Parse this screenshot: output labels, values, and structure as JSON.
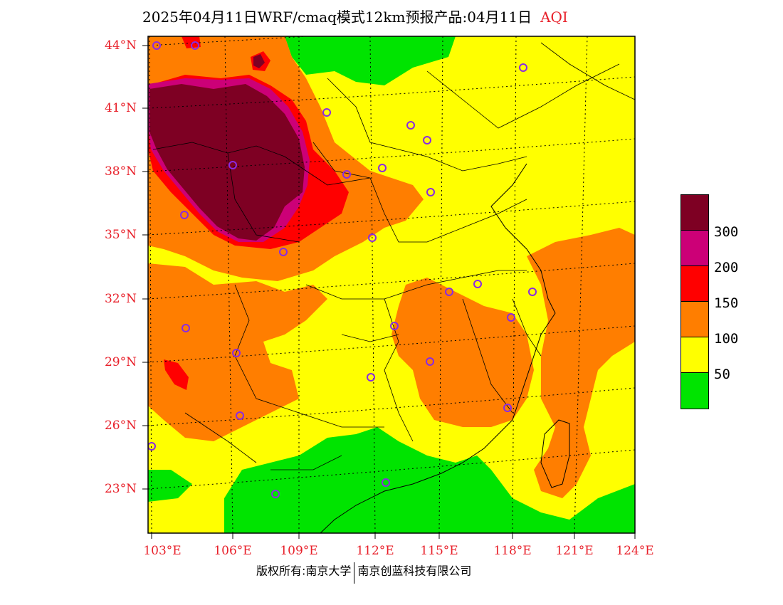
{
  "title": {
    "main": "2025年04月11日WRF/cmaq模式12km预报产品:04月11日",
    "variable": "AQI"
  },
  "map": {
    "lat_labels": [
      "44°N",
      "41°N",
      "38°N",
      "35°N",
      "32°N",
      "29°N",
      "26°N",
      "23°N"
    ],
    "lon_labels": [
      "103°E",
      "106°E",
      "109°E",
      "112°E",
      "115°E",
      "118°E",
      "121°E",
      "124°E"
    ],
    "colors": {
      "green": "#00e400",
      "yellow": "#ffff00",
      "orange": "#ff7e00",
      "red": "#ff0000",
      "purple": "#cc0077",
      "maroon": "#7e0023"
    },
    "station_marker": "circle"
  },
  "legend": {
    "colors": [
      "#7e0023",
      "#cc0077",
      "#ff0000",
      "#ff7e00",
      "#ffff00",
      "#00e400"
    ],
    "labels": [
      "300",
      "200",
      "150",
      "100",
      "50"
    ]
  },
  "footer": {
    "copyright": "版权所有:南京大学",
    "company": "南京创蓝科技有限公司"
  }
}
